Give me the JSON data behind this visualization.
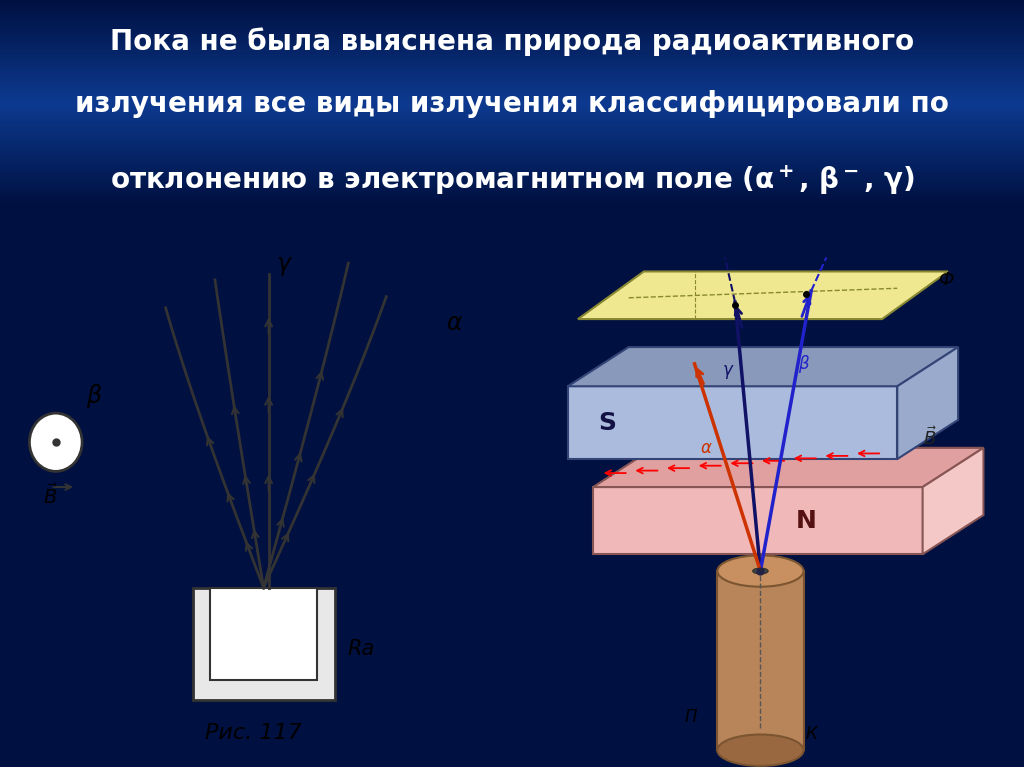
{
  "title_line1": "Пока не была выяснена природа радиоактивного",
  "title_line2": "излучения все виды излучения классифицировали по",
  "title_bg_top": "#001040",
  "title_bg_bot": "#0a3080",
  "title_color": "#ffffff",
  "left_bg": "#ffffff",
  "right_bg": "#f5e0c0",
  "fig_caption": "Рис. 117",
  "Ra_label": "Ra",
  "S_label": "S",
  "N_label": "N",
  "Phi_label": "Ф",
  "Pi_label": "П",
  "K_label": "К",
  "s_color_front": "#aabbdd",
  "s_color_top": "#8899bb",
  "s_color_right": "#99aacc",
  "n_color_front": "#f0b8b8",
  "n_color_top": "#e0a0a0",
  "n_color_right": "#f5c8c8",
  "cyl_color": "#b8845a",
  "plate_color": "#f0e890",
  "alpha_color": "#cc3300",
  "beta_color": "#2222cc",
  "gamma_color": "#111166",
  "dark_line": "#333333"
}
